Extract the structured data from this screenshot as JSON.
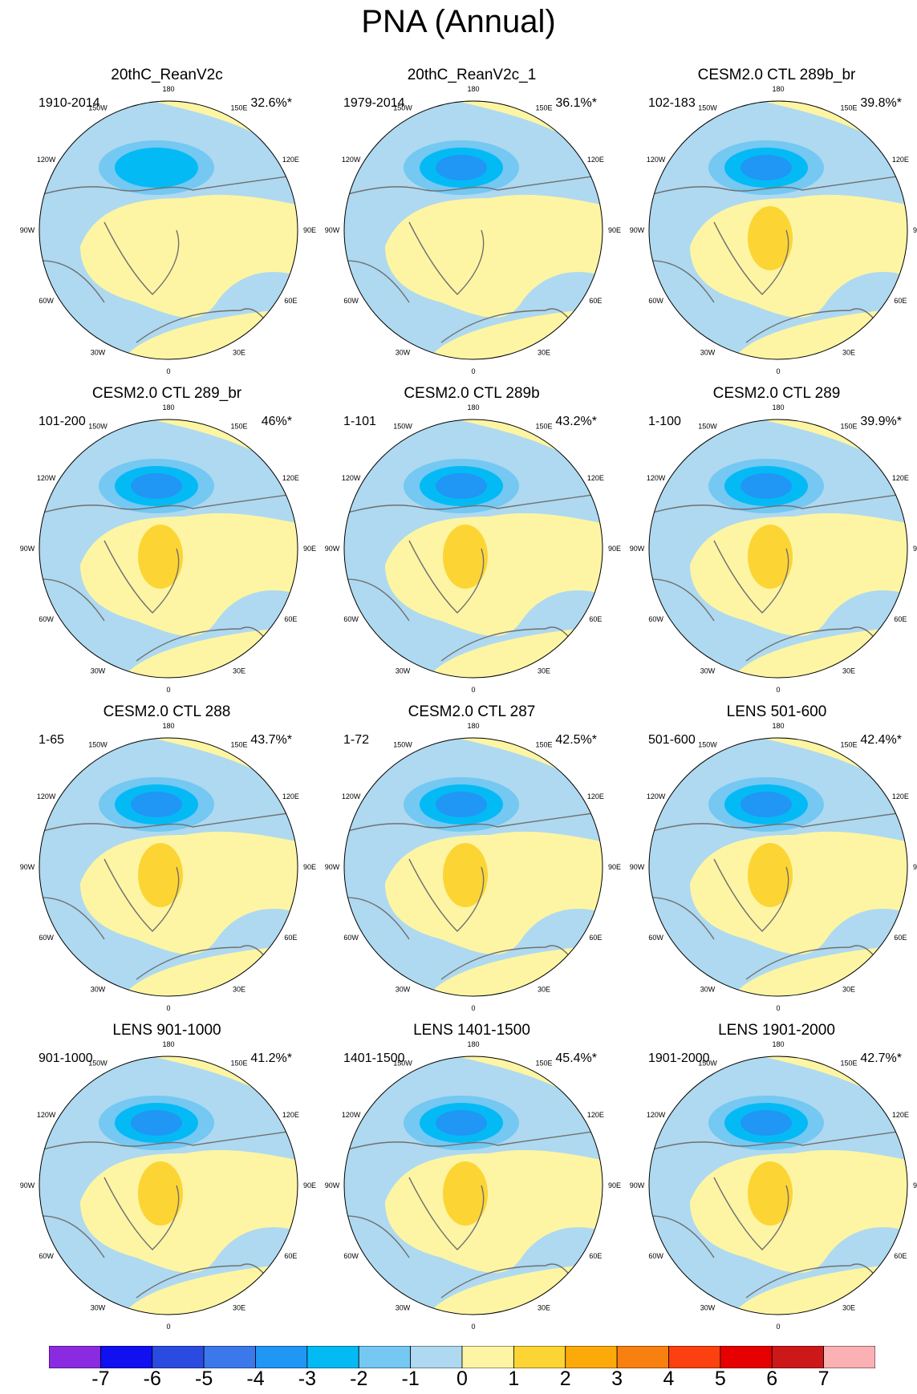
{
  "title": "PNA (Annual)",
  "colors": {
    "ocean_neutral_negative": "#aed9f0",
    "neutral_positive": "#fdf5a3",
    "coast": "#707070",
    "outline": "#000000"
  },
  "longitude_labels": [
    "180",
    "150E",
    "120E",
    "90E",
    "60E",
    "30E",
    "0",
    "30W",
    "60W",
    "90W",
    "120W",
    "150W"
  ],
  "panels": [
    {
      "title": "20thC_ReanV2c",
      "range": "1910-2014",
      "percent": "32.6%*",
      "center_min": -2,
      "center_max": 0
    },
    {
      "title": "20thC_ReanV2c_1",
      "range": "1979-2014",
      "percent": "36.1%*",
      "center_min": -3,
      "center_max": 0
    },
    {
      "title": "CESM2.0 CTL 289b_br",
      "range": "102-183",
      "percent": "39.8%*",
      "center_min": -3,
      "center_max": 1
    },
    {
      "title": "CESM2.0 CTL 289_br",
      "range": "101-200",
      "percent": "46%*",
      "center_min": -3,
      "center_max": 1
    },
    {
      "title": "CESM2.0 CTL 289b",
      "range": "1-101",
      "percent": "43.2%*",
      "center_min": -3,
      "center_max": 1
    },
    {
      "title": "CESM2.0 CTL 289",
      "range": "1-100",
      "percent": "39.9%*",
      "center_min": -3,
      "center_max": 1
    },
    {
      "title": "CESM2.0 CTL 288",
      "range": "1-65",
      "percent": "43.7%*",
      "center_min": -3,
      "center_max": 1
    },
    {
      "title": "CESM2.0 CTL 287",
      "range": "1-72",
      "percent": "42.5%*",
      "center_min": -3,
      "center_max": 1
    },
    {
      "title": "LENS 501-600",
      "range": "501-600",
      "percent": "42.4%*",
      "center_min": -3,
      "center_max": 1
    },
    {
      "title": "LENS 901-1000",
      "range": "901-1000",
      "percent": "41.2%*",
      "center_min": -3,
      "center_max": 1
    },
    {
      "title": "LENS 1401-1500",
      "range": "1401-1500",
      "percent": "45.4%*",
      "center_min": -3,
      "center_max": 1
    },
    {
      "title": "LENS 1901-2000",
      "range": "1901-2000",
      "percent": "42.7%*",
      "center_min": -3,
      "center_max": 1
    }
  ],
  "colorbar": {
    "labels": [
      "-7",
      "-6",
      "-5",
      "-4",
      "-3",
      "-2",
      "-1",
      "0",
      "1",
      "2",
      "3",
      "4",
      "5",
      "6",
      "7"
    ],
    "colors": [
      "#8a2be2",
      "#1010f0",
      "#2b4ae0",
      "#3b78ec",
      "#2096f5",
      "#04baf5",
      "#74c8f2",
      "#aed9f0",
      "#fdf5a3",
      "#fcd535",
      "#fcaa0a",
      "#f88010",
      "#fc4010",
      "#e60000",
      "#cc1818",
      "#fbb0b4"
    ]
  }
}
